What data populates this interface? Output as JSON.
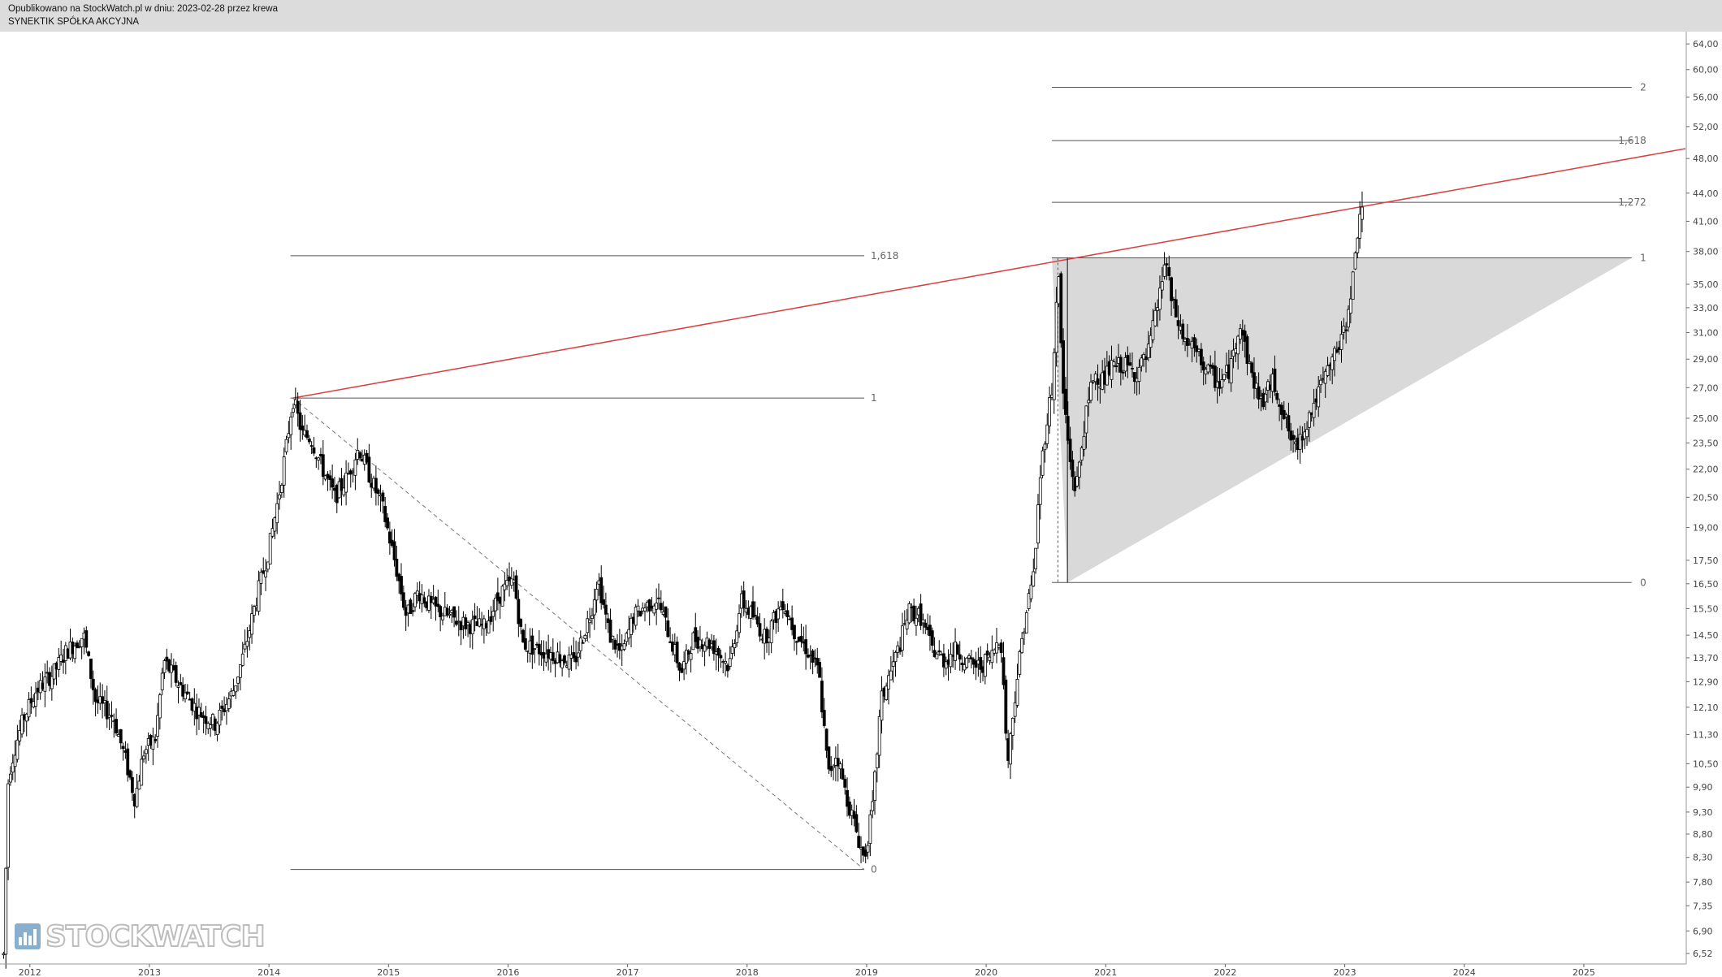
{
  "header": {
    "line1": "Opublikowano na StockWatch.pl w dniu: 2023-02-28 przez krewa",
    "line2": "SYNEKTIK SPÓŁKA AKCYJNA"
  },
  "watermark": {
    "text": "STOCKWATCH",
    "icon": "bar-chart-icon"
  },
  "chart_data": {
    "type": "candlestick",
    "title": "SYNEKTIK SPÓŁKA AKCYJNA",
    "y_scale": "log",
    "ylim": [
      6.35,
      66.0
    ],
    "xlim": [
      2011.75,
      2025.85
    ],
    "y_ticks": [
      "6,52",
      "6,90",
      "7,35",
      "7,80",
      "8,30",
      "8,80",
      "9,30",
      "9,90",
      "10,50",
      "11,30",
      "12,10",
      "12,90",
      "13,70",
      "14,50",
      "15,50",
      "16,50",
      "17,50",
      "19,00",
      "20,50",
      "22,00",
      "23,50",
      "25,00",
      "27,00",
      "29,00",
      "31,00",
      "33,00",
      "35,00",
      "38,00",
      "41,00",
      "44,00",
      "48,00",
      "52,00",
      "56,00",
      "60,00",
      "64,00"
    ],
    "x_ticks": [
      "2012",
      "2013",
      "2014",
      "2015",
      "2016",
      "2017",
      "2018",
      "2019",
      "2020",
      "2021",
      "2022",
      "2023",
      "2024",
      "2025"
    ],
    "price_path": [
      [
        2011.78,
        6.5
      ],
      [
        2011.82,
        10.2
      ],
      [
        2011.88,
        11.0
      ],
      [
        2011.95,
        11.8
      ],
      [
        2012.05,
        12.6
      ],
      [
        2012.2,
        13.2
      ],
      [
        2012.3,
        13.9
      ],
      [
        2012.45,
        14.5
      ],
      [
        2012.55,
        12.3
      ],
      [
        2012.7,
        11.8
      ],
      [
        2012.8,
        10.6
      ],
      [
        2012.88,
        9.6
      ],
      [
        2012.95,
        10.8
      ],
      [
        2013.05,
        11.2
      ],
      [
        2013.12,
        13.6
      ],
      [
        2013.25,
        12.8
      ],
      [
        2013.4,
        12.0
      ],
      [
        2013.55,
        11.6
      ],
      [
        2013.7,
        12.6
      ],
      [
        2013.8,
        14.0
      ],
      [
        2013.9,
        16.0
      ],
      [
        2014.0,
        18.0
      ],
      [
        2014.08,
        20.5
      ],
      [
        2014.15,
        23.5
      ],
      [
        2014.2,
        26.3
      ],
      [
        2014.28,
        24.0
      ],
      [
        2014.35,
        23.8
      ],
      [
        2014.45,
        22.0
      ],
      [
        2014.55,
        20.5
      ],
      [
        2014.65,
        21.5
      ],
      [
        2014.75,
        23.2
      ],
      [
        2014.85,
        21.5
      ],
      [
        2014.95,
        20.0
      ],
      [
        2015.05,
        17.5
      ],
      [
        2015.15,
        15.2
      ],
      [
        2015.25,
        16.2
      ],
      [
        2015.35,
        15.6
      ],
      [
        2015.5,
        15.2
      ],
      [
        2015.65,
        14.9
      ],
      [
        2015.8,
        14.8
      ],
      [
        2015.95,
        16.2
      ],
      [
        2016.05,
        16.6
      ],
      [
        2016.12,
        14.2
      ],
      [
        2016.25,
        14.0
      ],
      [
        2016.4,
        13.8
      ],
      [
        2016.55,
        13.5
      ],
      [
        2016.7,
        15.5
      ],
      [
        2016.75,
        16.8
      ],
      [
        2016.85,
        14.5
      ],
      [
        2016.95,
        13.8
      ],
      [
        2017.05,
        15.2
      ],
      [
        2017.15,
        15.6
      ],
      [
        2017.25,
        15.9
      ],
      [
        2017.35,
        14.5
      ],
      [
        2017.45,
        13.2
      ],
      [
        2017.55,
        14.4
      ],
      [
        2017.7,
        14.2
      ],
      [
        2017.85,
        13.4
      ],
      [
        2017.95,
        15.8
      ],
      [
        2018.05,
        15.2
      ],
      [
        2018.15,
        14.4
      ],
      [
        2018.3,
        15.8
      ],
      [
        2018.4,
        14.6
      ],
      [
        2018.5,
        14.0
      ],
      [
        2018.6,
        13.2
      ],
      [
        2018.68,
        10.2
      ],
      [
        2018.75,
        10.8
      ],
      [
        2018.82,
        9.8
      ],
      [
        2018.9,
        9.0
      ],
      [
        2018.98,
        8.25
      ],
      [
        2019.05,
        9.4
      ],
      [
        2019.12,
        12.3
      ],
      [
        2019.2,
        13.2
      ],
      [
        2019.28,
        14.2
      ],
      [
        2019.35,
        15.4
      ],
      [
        2019.45,
        15.2
      ],
      [
        2019.55,
        14.0
      ],
      [
        2019.65,
        13.6
      ],
      [
        2019.75,
        14.0
      ],
      [
        2019.85,
        13.5
      ],
      [
        2019.95,
        13.4
      ],
      [
        2020.05,
        13.8
      ],
      [
        2020.12,
        14.6
      ],
      [
        2020.18,
        10.5
      ],
      [
        2020.25,
        12.8
      ],
      [
        2020.32,
        15.0
      ],
      [
        2020.4,
        17.0
      ],
      [
        2020.45,
        21.5
      ],
      [
        2020.5,
        24.5
      ],
      [
        2020.56,
        27.5
      ],
      [
        2020.6,
        37.2
      ],
      [
        2020.64,
        27.0
      ],
      [
        2020.7,
        22.5
      ],
      [
        2020.75,
        20.8
      ],
      [
        2020.82,
        24.5
      ],
      [
        2020.9,
        28.0
      ],
      [
        2020.98,
        27.5
      ],
      [
        2021.05,
        28.4
      ],
      [
        2021.15,
        28.6
      ],
      [
        2021.25,
        28.0
      ],
      [
        2021.35,
        29.2
      ],
      [
        2021.45,
        34.0
      ],
      [
        2021.5,
        37.5
      ],
      [
        2021.55,
        33.5
      ],
      [
        2021.65,
        30.5
      ],
      [
        2021.75,
        29.5
      ],
      [
        2021.85,
        28.2
      ],
      [
        2021.95,
        27.2
      ],
      [
        2022.05,
        28.5
      ],
      [
        2022.12,
        32.0
      ],
      [
        2022.2,
        28.5
      ],
      [
        2022.3,
        26.0
      ],
      [
        2022.4,
        27.5
      ],
      [
        2022.5,
        25.0
      ],
      [
        2022.58,
        23.0
      ],
      [
        2022.65,
        24.2
      ],
      [
        2022.72,
        25.5
      ],
      [
        2022.8,
        27.0
      ],
      [
        2022.88,
        28.6
      ],
      [
        2022.95,
        30.0
      ],
      [
        2023.0,
        31.0
      ],
      [
        2023.04,
        34.0
      ],
      [
        2023.08,
        36.2
      ],
      [
        2023.12,
        42.0
      ],
      [
        2023.16,
        43.2
      ]
    ],
    "levels": [
      {
        "label": "1,618",
        "value": 37.6,
        "x_start": 2014.18,
        "x_end": 2018.98,
        "label_side": "right"
      },
      {
        "label": "1",
        "value": 26.3,
        "x_start": 2014.18,
        "x_end": 2018.98,
        "label_side": "right"
      },
      {
        "label": "0",
        "value": 8.05,
        "x_start": 2014.18,
        "x_end": 2018.98,
        "label_side": "right"
      },
      {
        "label": "2",
        "value": 57.4,
        "x_start": 2020.55,
        "x_end": 2025.4,
        "label_side": "axis"
      },
      {
        "label": "1,618",
        "value": 50.2,
        "x_start": 2020.55,
        "x_end": 2025.4,
        "label_side": "axis"
      },
      {
        "label": "1,272",
        "value": 43.0,
        "x_start": 2020.55,
        "x_end": 2025.4,
        "label_side": "axis"
      },
      {
        "label": "1",
        "value": 37.4,
        "x_start": 2020.55,
        "x_end": 2025.4,
        "label_side": "axis"
      },
      {
        "label": "0",
        "value": 16.55,
        "x_start": 2020.55,
        "x_end": 2025.4,
        "label_side": "axis"
      }
    ],
    "trendline": {
      "color": "#d94040",
      "from": [
        2014.2,
        26.3
      ],
      "to": [
        2025.85,
        49.2
      ]
    },
    "dashed_line": {
      "from": [
        2014.2,
        26.3
      ],
      "to": [
        2018.98,
        8.05
      ]
    },
    "triangle": {
      "fill": "#d9d9d9",
      "points": [
        [
          2020.55,
          37.4
        ],
        [
          2025.4,
          37.4
        ],
        [
          2020.68,
          16.55
        ]
      ]
    },
    "vertical_marker": {
      "from": [
        2020.6,
        37.4
      ],
      "to": [
        2020.68,
        16.55
      ]
    }
  }
}
